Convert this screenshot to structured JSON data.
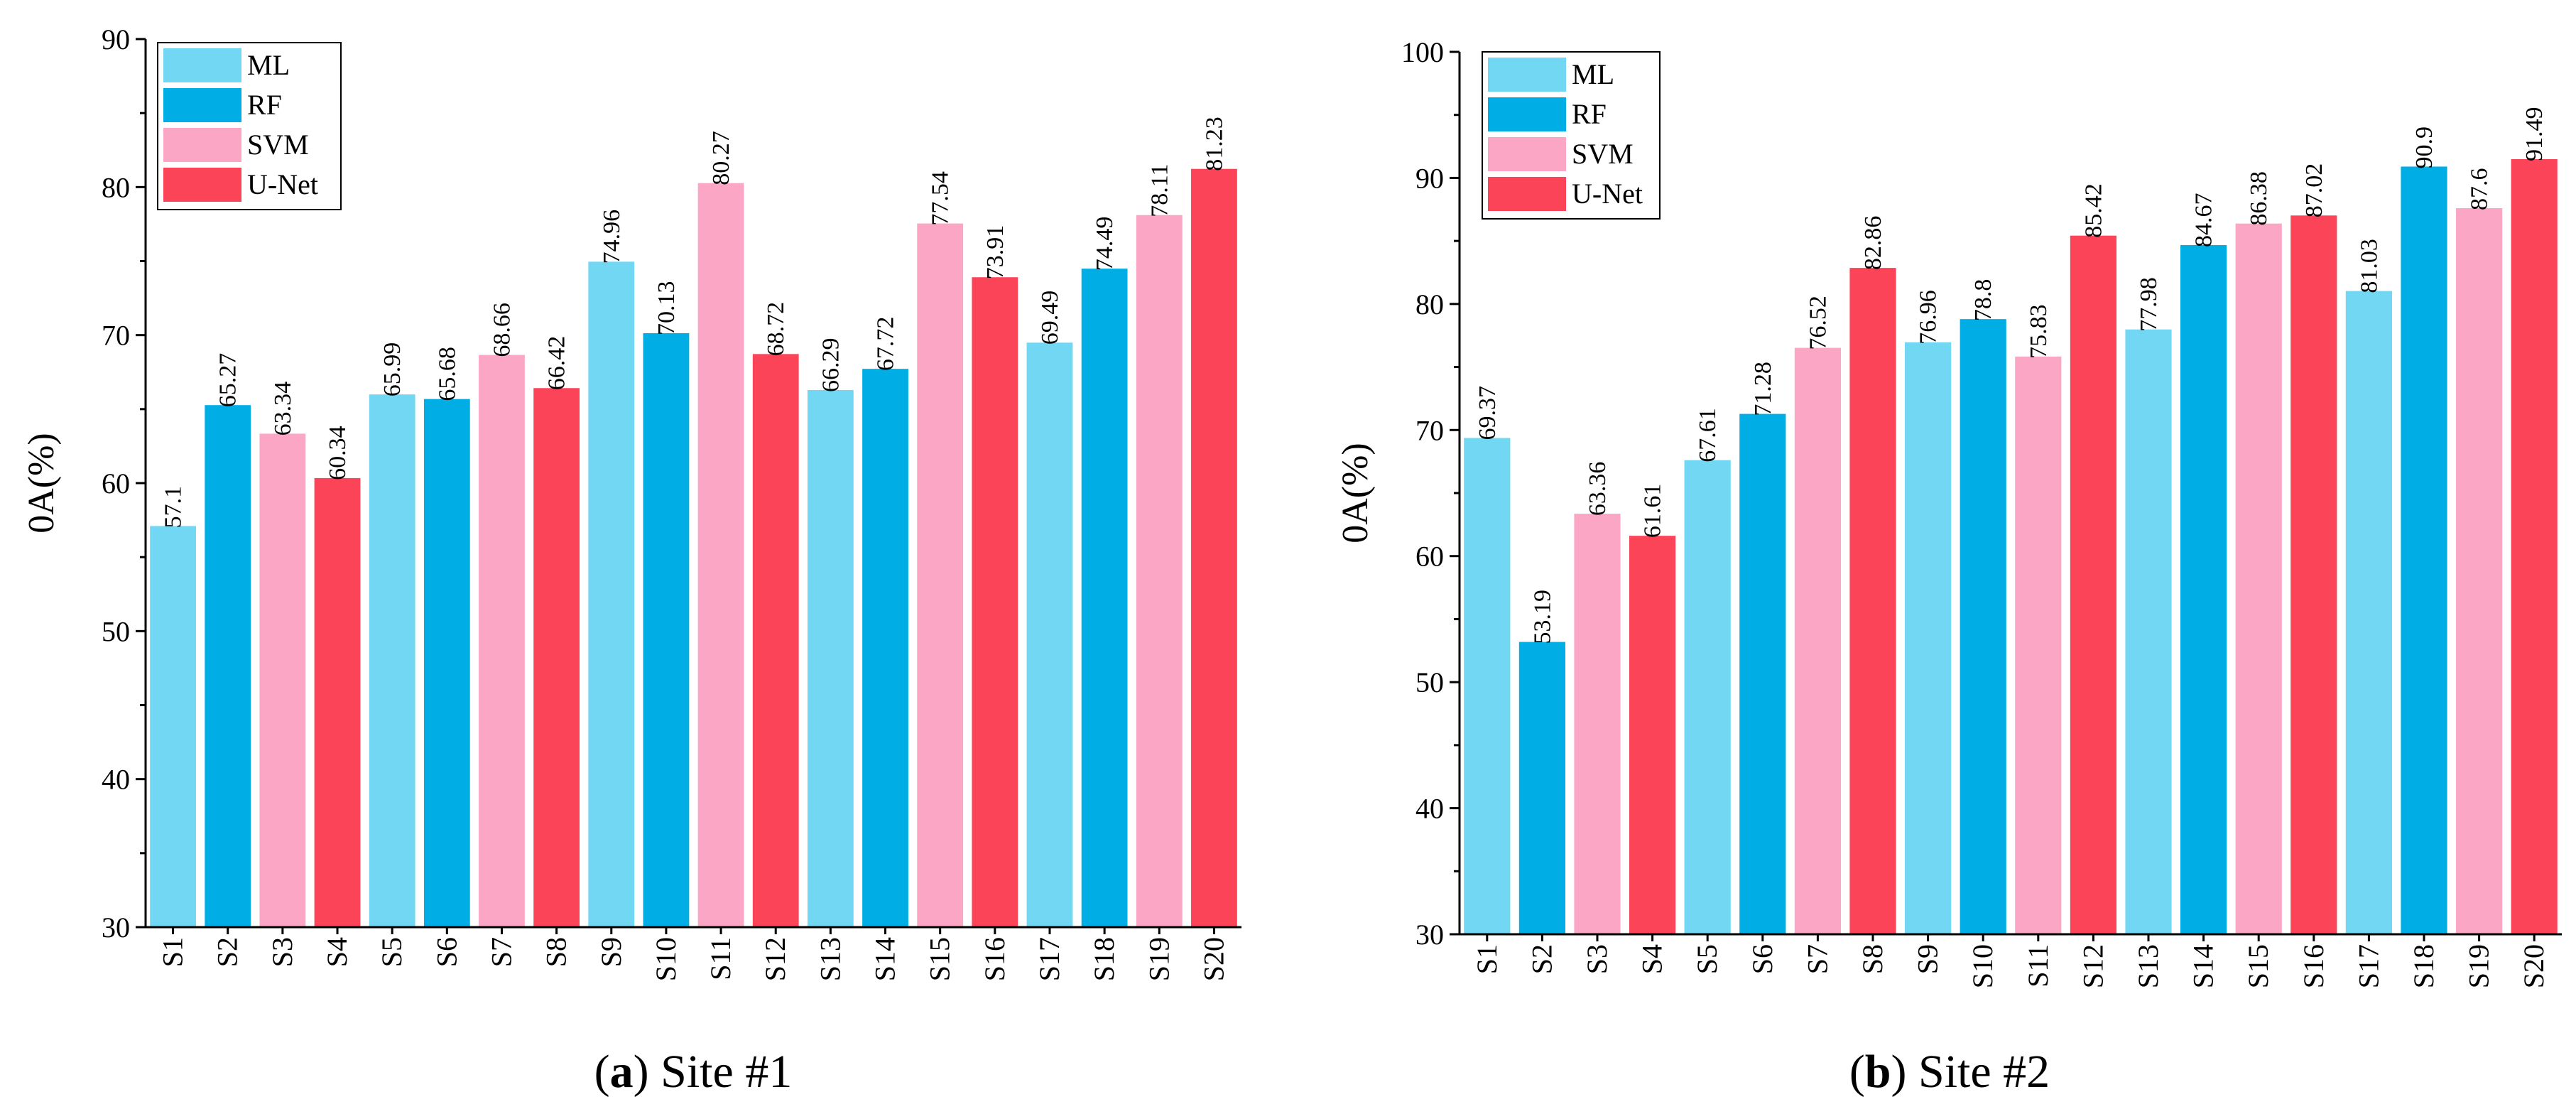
{
  "colors": {
    "ML": "#72D7F3",
    "RF": "#00AEE5",
    "SVM": "#FCA6C6",
    "U-Net": "#FC4459",
    "axis": "#000000"
  },
  "chart_data": [
    {
      "type": "bar",
      "panel": "a",
      "caption_letter": "a",
      "caption_text": " Site #1",
      "ylabel": "0A(%)",
      "ylim": [
        30,
        90
      ],
      "yticks": [
        30,
        40,
        50,
        60,
        70,
        80,
        90
      ],
      "categories": [
        "S1",
        "S2",
        "S3",
        "S4",
        "S5",
        "S6",
        "S7",
        "S8",
        "S9",
        "S10",
        "S11",
        "S12",
        "S13",
        "S14",
        "S15",
        "S16",
        "S17",
        "S18",
        "S19",
        "S20"
      ],
      "values": [
        57.1,
        65.27,
        63.34,
        60.34,
        65.99,
        65.68,
        68.66,
        66.42,
        74.96,
        70.13,
        80.27,
        68.72,
        66.29,
        67.72,
        77.54,
        73.91,
        69.49,
        74.49,
        78.11,
        81.23
      ],
      "value_labels": [
        "57.1",
        "65.27",
        "63.34",
        "60.34",
        "65.99",
        "65.68",
        "68.66",
        "66.42",
        "74.96",
        "70.13",
        "80.27",
        "68.72",
        "66.29",
        "67.72",
        "77.54",
        "73.91",
        "69.49",
        "74.49",
        "78.11",
        "81.23"
      ],
      "methods": [
        "ML",
        "RF",
        "SVM",
        "U-Net"
      ],
      "legend": [
        "ML",
        "RF",
        "SVM",
        "U-Net"
      ],
      "legend_position": "top-left"
    },
    {
      "type": "bar",
      "panel": "b",
      "caption_letter": "b",
      "caption_text": " Site #2",
      "ylabel": "0A(%)",
      "ylim": [
        30,
        100
      ],
      "yticks": [
        30,
        40,
        50,
        60,
        70,
        80,
        90,
        100
      ],
      "categories": [
        "S1",
        "S2",
        "S3",
        "S4",
        "S5",
        "S6",
        "S7",
        "S8",
        "S9",
        "S10",
        "S11",
        "S12",
        "S13",
        "S14",
        "S15",
        "S16",
        "S17",
        "S18",
        "S19",
        "S20"
      ],
      "values": [
        69.37,
        53.19,
        63.36,
        61.61,
        67.61,
        71.28,
        76.52,
        82.86,
        76.96,
        78.8,
        75.83,
        85.42,
        77.98,
        84.67,
        86.38,
        87.02,
        81.03,
        90.9,
        87.6,
        91.49
      ],
      "value_labels": [
        "69.37",
        "53.19",
        "63.36",
        "61.61",
        "67.61",
        "71.28",
        "76.52",
        "82.86",
        "76.96",
        "78.8",
        "75.83",
        "85.42",
        "77.98",
        "84.67",
        "86.38",
        "87.02",
        "81.03",
        "90.9",
        "87.6",
        "91.49"
      ],
      "methods": [
        "ML",
        "RF",
        "SVM",
        "U-Net"
      ],
      "legend": [
        "ML",
        "RF",
        "SVM",
        "U-Net"
      ],
      "legend_position": "top-left"
    }
  ]
}
